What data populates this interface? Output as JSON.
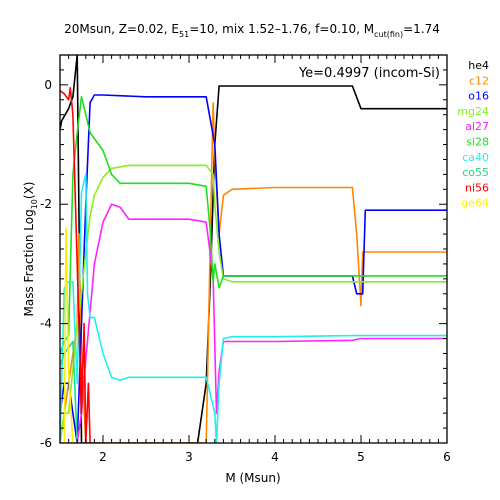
{
  "chart_data": {
    "type": "line",
    "title": "20Msun, Z=0.02, E51=10, mix 1.52–1.76, f=0.10, Mcut(fin)=1.74",
    "title_parts": {
      "a": "20Msun, Z=0.02, E",
      "a_sub": "51",
      "b": "=10, mix 1.52–1.76, f=0.10, M",
      "b_sub": "cut(fin)",
      "c": "=1.74"
    },
    "annotation": "Ye=0.4997 (incom-Si)",
    "xlabel": "M (Msun)",
    "ylabel_parts": {
      "a": "Mass Fraction Log",
      "sub": "10",
      "b": "(X)"
    },
    "xlim": [
      1.5,
      6
    ],
    "ylim": [
      -6,
      0.5
    ],
    "x_ticks": [
      2,
      3,
      4,
      5,
      6
    ],
    "y_ticks": [
      0,
      -2,
      -4,
      -6
    ],
    "legend_placement": "right-outside",
    "grid": false,
    "series": [
      {
        "name": "he4",
        "color": "#000000",
        "x": [
          1.5,
          1.52,
          1.6,
          1.65,
          1.7,
          1.75,
          1.78,
          1.85,
          2.0,
          2.5,
          3.0,
          3.1,
          3.2,
          3.25,
          3.3,
          3.35,
          4.0,
          4.9,
          5.0,
          6.0
        ],
        "y": [
          -0.75,
          -0.6,
          -0.4,
          -0.2,
          0.5,
          -6.0,
          -6.0,
          -6.0,
          -6.0,
          -6.0,
          -6.0,
          -6.0,
          -5.0,
          -3.2,
          -1.0,
          -0.02,
          -0.02,
          -0.02,
          -0.4,
          -0.4
        ]
      },
      {
        "name": "c12",
        "color": "#ff8800",
        "x": [
          1.5,
          1.55,
          1.6,
          1.65,
          1.7,
          1.72,
          1.75,
          1.8,
          1.85,
          2.0,
          2.5,
          3.0,
          3.1,
          3.2,
          3.28,
          3.3,
          3.35,
          3.4,
          3.5,
          4.0,
          4.5,
          4.9,
          4.95,
          5.0,
          5.02,
          6.0
        ],
        "y": [
          -6.0,
          -5.5,
          -5.0,
          -4.5,
          -4.0,
          -2.5,
          -4.5,
          -6.0,
          -6.0,
          -6.0,
          -6.0,
          -6.0,
          -6.0,
          -6.0,
          -0.3,
          -1.2,
          -2.5,
          -1.85,
          -1.75,
          -1.72,
          -1.72,
          -1.72,
          -2.5,
          -3.7,
          -2.8,
          -2.8
        ]
      },
      {
        "name": "o16",
        "color": "#0000ff",
        "x": [
          1.5,
          1.55,
          1.6,
          1.65,
          1.7,
          1.8,
          1.85,
          1.9,
          2.0,
          2.5,
          3.0,
          3.2,
          3.3,
          3.35,
          3.4,
          3.5,
          4.0,
          4.9,
          4.95,
          5.02,
          5.05,
          6.0
        ],
        "y": [
          -5.5,
          -5.0,
          -5.0,
          -5.5,
          -6.0,
          -2.0,
          -0.3,
          -0.17,
          -0.17,
          -0.2,
          -0.2,
          -0.2,
          -1.0,
          -2.5,
          -3.2,
          -3.2,
          -3.2,
          -3.2,
          -3.5,
          -3.5,
          -2.1,
          -2.1
        ]
      },
      {
        "name": "mg24",
        "color": "#88ee22",
        "x": [
          1.5,
          1.55,
          1.6,
          1.7,
          1.75,
          1.8,
          1.85,
          1.9,
          2.0,
          2.1,
          2.3,
          2.5,
          2.8,
          3.0,
          3.2,
          3.28,
          3.3,
          3.35,
          3.4,
          3.5,
          4.0,
          4.9,
          5.0,
          6.0
        ],
        "y": [
          -6.0,
          -5.5,
          -5.5,
          -4.0,
          -3.5,
          -2.8,
          -2.2,
          -1.85,
          -1.55,
          -1.4,
          -1.35,
          -1.35,
          -1.35,
          -1.35,
          -1.35,
          -1.5,
          -2.0,
          -2.8,
          -3.25,
          -3.3,
          -3.3,
          -3.3,
          -3.3,
          -3.3
        ]
      },
      {
        "name": "al27",
        "color": "#ff22ff",
        "x": [
          1.5,
          1.6,
          1.7,
          1.75,
          1.8,
          1.85,
          1.9,
          2.0,
          2.1,
          2.2,
          2.3,
          2.5,
          3.0,
          3.2,
          3.28,
          3.32,
          3.35,
          3.4,
          3.5,
          4.0,
          4.9,
          5.0,
          6.0
        ],
        "y": [
          -6.0,
          -6.0,
          -6.0,
          -5.5,
          -4.6,
          -3.8,
          -3.0,
          -2.3,
          -2.0,
          -2.05,
          -2.25,
          -2.25,
          -2.25,
          -2.3,
          -3.2,
          -5.5,
          -4.8,
          -4.3,
          -4.3,
          -4.3,
          -4.28,
          -4.25,
          -4.25
        ]
      },
      {
        "name": "si28",
        "color": "#22dd22",
        "x": [
          1.5,
          1.55,
          1.6,
          1.65,
          1.7,
          1.75,
          1.8,
          1.85,
          1.9,
          2.0,
          2.1,
          2.2,
          2.5,
          2.8,
          3.0,
          3.2,
          3.25,
          3.28,
          3.3,
          3.35,
          3.4,
          4.0,
          4.9,
          5.0,
          6.0
        ],
        "y": [
          -4.5,
          -4.3,
          -4.2,
          -1.5,
          -0.8,
          -0.2,
          -0.5,
          -0.8,
          -0.9,
          -1.1,
          -1.5,
          -1.65,
          -1.65,
          -1.65,
          -1.65,
          -1.7,
          -2.5,
          -3.3,
          -3.0,
          -3.4,
          -3.2,
          -3.2,
          -3.2,
          -3.2,
          -3.2
        ]
      },
      {
        "name": "ca40",
        "color": "#22eeee",
        "x": [
          1.5,
          1.55,
          1.6,
          1.65,
          1.7,
          1.75,
          1.8,
          1.82,
          1.85,
          1.9,
          2.0,
          2.1,
          2.2,
          2.3,
          2.5,
          3.0,
          3.2,
          3.3,
          3.32,
          3.35,
          3.4,
          3.5,
          4.0,
          4.9,
          5.0,
          6.0
        ],
        "y": [
          -6.0,
          -3.4,
          -3.3,
          -3.3,
          -5.0,
          -1.8,
          -1.5,
          -3.5,
          -3.9,
          -3.9,
          -4.5,
          -4.9,
          -4.95,
          -4.9,
          -4.9,
          -4.9,
          -4.9,
          -5.5,
          -6.0,
          -5.0,
          -4.25,
          -4.22,
          -4.22,
          -4.2,
          -4.2,
          -4.2
        ]
      },
      {
        "name": "co55",
        "color": "#22dd88",
        "x": [
          1.5,
          1.55,
          1.6,
          1.65,
          1.7
        ],
        "y": [
          -4.7,
          -4.5,
          -4.4,
          -4.3,
          -6.0
        ]
      },
      {
        "name": "ni56",
        "color": "#ff0000",
        "x": [
          1.5,
          1.55,
          1.6,
          1.62,
          1.65,
          1.7,
          1.75,
          1.78,
          1.8,
          1.83,
          1.85
        ],
        "y": [
          -0.1,
          -0.15,
          -0.25,
          -0.05,
          -0.5,
          -3.0,
          -5.5,
          -4.0,
          -6.0,
          -5.0,
          -6.0
        ]
      },
      {
        "name": "ge64",
        "color": "#ffee00",
        "x": [
          1.55,
          1.57,
          1.6,
          1.65
        ],
        "y": [
          -6.0,
          -2.4,
          -4.8,
          -6.0
        ]
      }
    ]
  }
}
